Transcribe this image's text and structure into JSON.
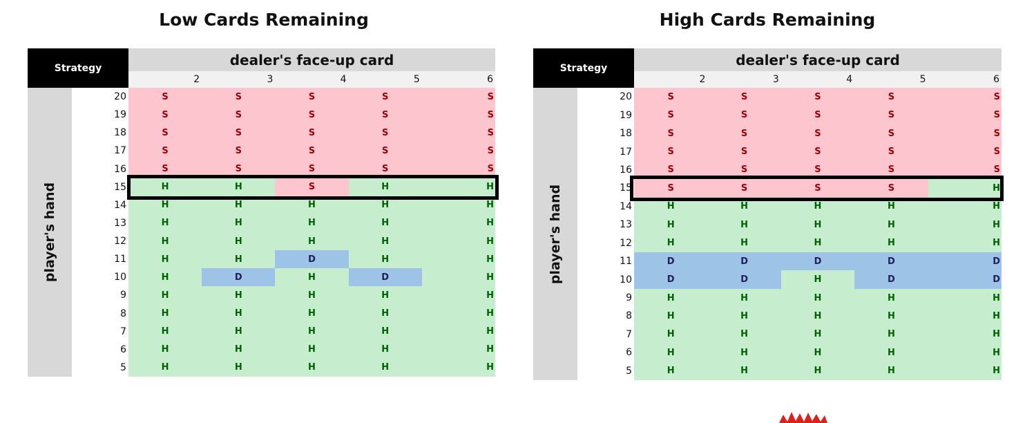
{
  "panels": [
    {
      "title": "Low Cards Remaining",
      "strategy_label": "Strategy",
      "dealer_label": "dealer's face-up card",
      "player_label": "player's hand",
      "dealer_cards": [
        "2",
        "3",
        "4",
        "5",
        "6"
      ],
      "player_hands": [
        "20",
        "19",
        "18",
        "17",
        "16",
        "15",
        "14",
        "13",
        "12",
        "11",
        "10",
        "9",
        "8",
        "7",
        "6",
        "5"
      ],
      "rows": [
        [
          "S",
          "S",
          "S",
          "S",
          "S"
        ],
        [
          "S",
          "S",
          "S",
          "S",
          "S"
        ],
        [
          "S",
          "S",
          "S",
          "S",
          "S"
        ],
        [
          "S",
          "S",
          "S",
          "S",
          "S"
        ],
        [
          "S",
          "S",
          "S",
          "S",
          "S"
        ],
        [
          "H",
          "H",
          "S",
          "H",
          "H"
        ],
        [
          "H",
          "H",
          "H",
          "H",
          "H"
        ],
        [
          "H",
          "H",
          "H",
          "H",
          "H"
        ],
        [
          "H",
          "H",
          "H",
          "H",
          "H"
        ],
        [
          "H",
          "H",
          "D",
          "H",
          "H"
        ],
        [
          "H",
          "D",
          "H",
          "D",
          "H"
        ],
        [
          "H",
          "H",
          "H",
          "H",
          "H"
        ],
        [
          "H",
          "H",
          "H",
          "H",
          "H"
        ],
        [
          "H",
          "H",
          "H",
          "H",
          "H"
        ],
        [
          "H",
          "H",
          "H",
          "H",
          "H"
        ],
        [
          "H",
          "H",
          "H",
          "H",
          "H"
        ]
      ],
      "highlighted_hand": "15"
    },
    {
      "title": "High Cards Remaining",
      "strategy_label": "Strategy",
      "dealer_label": "dealer's face-up card",
      "player_label": "player's hand",
      "dealer_cards": [
        "2",
        "3",
        "4",
        "5",
        "6"
      ],
      "player_hands": [
        "20",
        "19",
        "18",
        "17",
        "16",
        "15",
        "14",
        "13",
        "12",
        "11",
        "10",
        "9",
        "8",
        "7",
        "6",
        "5"
      ],
      "rows": [
        [
          "S",
          "S",
          "S",
          "S",
          "S"
        ],
        [
          "S",
          "S",
          "S",
          "S",
          "S"
        ],
        [
          "S",
          "S",
          "S",
          "S",
          "S"
        ],
        [
          "S",
          "S",
          "S",
          "S",
          "S"
        ],
        [
          "S",
          "S",
          "S",
          "S",
          "S"
        ],
        [
          "S",
          "S",
          "S",
          "S",
          "H"
        ],
        [
          "H",
          "H",
          "H",
          "H",
          "H"
        ],
        [
          "H",
          "H",
          "H",
          "H",
          "H"
        ],
        [
          "H",
          "H",
          "H",
          "H",
          "H"
        ],
        [
          "D",
          "D",
          "D",
          "D",
          "D"
        ],
        [
          "D",
          "D",
          "H",
          "D",
          "D"
        ],
        [
          "H",
          "H",
          "H",
          "H",
          "H"
        ],
        [
          "H",
          "H",
          "H",
          "H",
          "H"
        ],
        [
          "H",
          "H",
          "H",
          "H",
          "H"
        ],
        [
          "H",
          "H",
          "H",
          "H",
          "H"
        ],
        [
          "H",
          "H",
          "H",
          "H",
          "H"
        ]
      ],
      "highlighted_hand": "15"
    }
  ],
  "colors": {
    "stand_bg": "#fdc6ce",
    "stand_text": "#9c0006",
    "hit_bg": "#c6eece",
    "hit_text": "#006100",
    "double_bg": "#9dc3e6",
    "double_text": "#1f1f5c",
    "starburst": "#e0201b"
  },
  "icons": {
    "decoration": "red-starburst-icon"
  }
}
